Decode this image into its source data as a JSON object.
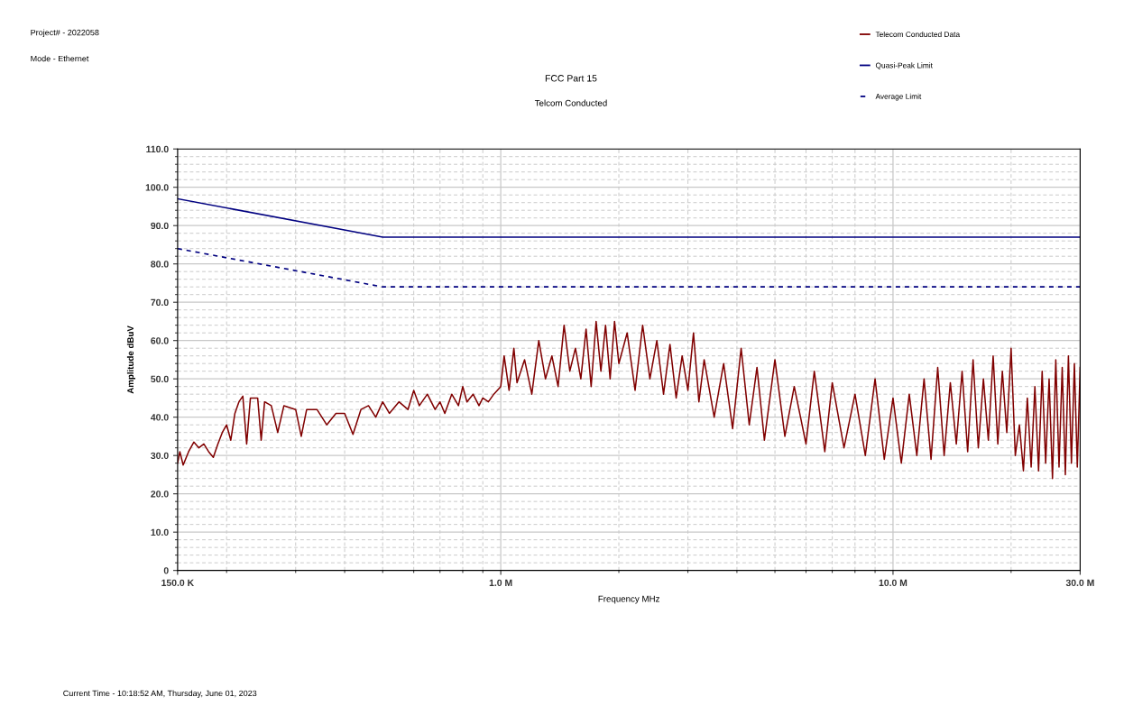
{
  "chart_data": {
    "type": "line",
    "title": "FCC Part 15",
    "subtitle": "Telcom Conducted",
    "xlabel": "Frequency MHz",
    "ylabel": "Amplitude dBuV",
    "annotations": [
      "Project# - 2022058",
      "Mode - Ethernet",
      "Current Time - 10:18:52 AM, Thursday, June 01, 2023"
    ],
    "log": "x",
    "grid": true,
    "legend": "top right",
    "marker": "none",
    "xlim": [
      0.15,
      30
    ],
    "xticks": [
      {
        "value": 0.15,
        "label": "150.0 K"
      },
      {
        "value": 1,
        "label": "1.0 M"
      },
      {
        "value": 10,
        "label": "10.0 M"
      },
      {
        "value": 30,
        "label": "30.0 M"
      }
    ],
    "ylim": [
      0,
      110
    ],
    "yticks": [
      0,
      {
        "value": 10,
        "label": "10.0"
      },
      {
        "value": 20,
        "label": "20.0"
      },
      {
        "value": 30,
        "label": "30.0"
      },
      {
        "value": 40,
        "label": "40.0"
      },
      {
        "value": 50,
        "label": "50.0"
      },
      {
        "value": 60,
        "label": "60.0"
      },
      {
        "value": 70,
        "label": "70.0"
      },
      {
        "value": 80,
        "label": "80.0"
      },
      {
        "value": 90,
        "label": "90.0"
      },
      {
        "value": 100,
        "label": "100.0"
      },
      {
        "value": 110,
        "label": "110.0"
      }
    ],
    "series": [
      {
        "name": "Telecom Conducted Data",
        "color": "#800000",
        "line_style": "solid",
        "x": [
          0.15,
          0.152,
          0.155,
          0.16,
          0.165,
          0.17,
          0.175,
          0.18,
          0.185,
          0.19,
          0.195,
          0.2,
          0.205,
          0.21,
          0.215,
          0.22,
          0.225,
          0.23,
          0.24,
          0.245,
          0.25,
          0.26,
          0.27,
          0.28,
          0.3,
          0.31,
          0.32,
          0.34,
          0.36,
          0.38,
          0.4,
          0.42,
          0.44,
          0.46,
          0.48,
          0.5,
          0.52,
          0.55,
          0.58,
          0.6,
          0.62,
          0.65,
          0.68,
          0.7,
          0.72,
          0.75,
          0.78,
          0.8,
          0.82,
          0.85,
          0.88,
          0.9,
          0.93,
          0.96,
          1.0,
          1.02,
          1.05,
          1.08,
          1.1,
          1.15,
          1.2,
          1.25,
          1.3,
          1.35,
          1.4,
          1.45,
          1.5,
          1.55,
          1.6,
          1.65,
          1.7,
          1.75,
          1.8,
          1.85,
          1.9,
          1.95,
          2.0,
          2.1,
          2.2,
          2.3,
          2.4,
          2.5,
          2.6,
          2.7,
          2.8,
          2.9,
          3.0,
          3.1,
          3.2,
          3.3,
          3.5,
          3.7,
          3.9,
          4.1,
          4.3,
          4.5,
          4.7,
          5.0,
          5.3,
          5.6,
          6.0,
          6.3,
          6.7,
          7.0,
          7.5,
          8.0,
          8.5,
          9.0,
          9.5,
          10.0,
          10.5,
          11,
          11.5,
          12,
          12.5,
          13,
          13.5,
          14,
          14.5,
          15,
          15.5,
          16,
          16.5,
          17,
          17.5,
          18,
          18.5,
          19,
          19.5,
          20,
          20.5,
          21,
          21.5,
          22,
          22.5,
          23,
          23.5,
          24,
          24.5,
          25,
          25.5,
          26,
          26.5,
          27,
          27.5,
          28,
          28.5,
          29,
          29.5,
          30
        ],
        "values": [
          28,
          31,
          27.5,
          31,
          33.5,
          32,
          33,
          31,
          29.5,
          33,
          36,
          38,
          34,
          41,
          44,
          45.5,
          33,
          45,
          45,
          34,
          44,
          43,
          36,
          43,
          42,
          35,
          42,
          42,
          38,
          41,
          41,
          35.5,
          42,
          43,
          40,
          44,
          41,
          44,
          42,
          47,
          43,
          46,
          42,
          44,
          41,
          46,
          43,
          48,
          44,
          46,
          43,
          45,
          44,
          46,
          48,
          56,
          47,
          58,
          49,
          55,
          46,
          60,
          50,
          56,
          48,
          64,
          52,
          58,
          50,
          63,
          48,
          65,
          52,
          64,
          50,
          65,
          54,
          62,
          47,
          64,
          50,
          60,
          46,
          59,
          45,
          56,
          47,
          62,
          44,
          55,
          40,
          54,
          37,
          58,
          38,
          53,
          34,
          55,
          35,
          48,
          33,
          52,
          31,
          49,
          32,
          46,
          30,
          50,
          29,
          45,
          28,
          46,
          30,
          50,
          29,
          53,
          30,
          49,
          33,
          52,
          31,
          55,
          32,
          50,
          34,
          56,
          33,
          52,
          36,
          58,
          30,
          38,
          26,
          45,
          27,
          48,
          26,
          52,
          28,
          50,
          24,
          55,
          27,
          53,
          25,
          56,
          28,
          54,
          27,
          53
        ]
      },
      {
        "name": "Quasi-Peak Limit",
        "color": "#000080",
        "line_style": "solid",
        "x": [
          0.15,
          0.5,
          30
        ],
        "values": [
          97,
          87,
          87
        ]
      },
      {
        "name": "Average Limit",
        "color": "#000080",
        "line_style": "dashed",
        "x": [
          0.15,
          0.5,
          30
        ],
        "values": [
          84,
          74,
          74
        ]
      }
    ]
  }
}
